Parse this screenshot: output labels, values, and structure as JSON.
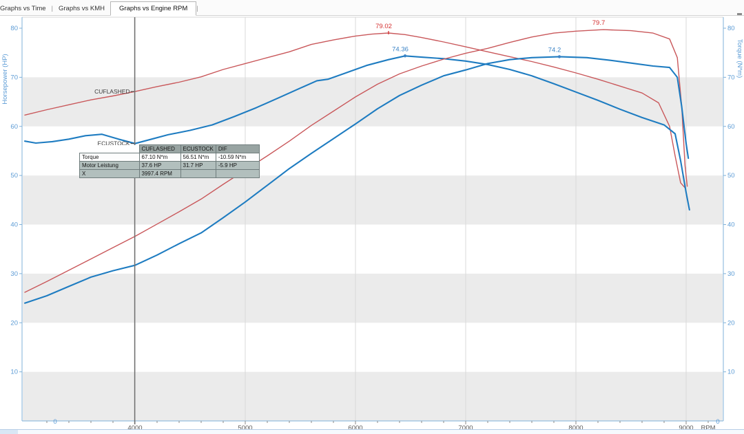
{
  "window": {
    "tabs": [
      {
        "label": "Graphs vs Time"
      },
      {
        "label": "Graphs vs KMH"
      },
      {
        "label": "Graphs vs Engine RPM"
      }
    ],
    "active_tab": "Graphs vs Engine RPM",
    "tab_separator": "|"
  },
  "chart_data": {
    "type": "line",
    "x_axis": {
      "unit_label": "RPM",
      "min": 3000,
      "max": 9300,
      "major_ticks": [
        4000,
        5000,
        6000,
        7000,
        8000,
        9000
      ],
      "minor_tick_step": 200,
      "grid": "vertical-lines-at-major-ticks"
    },
    "y_axis_left": {
      "title": "Horsepower (HP)",
      "min": 0,
      "max": 80,
      "ticks": [
        0,
        10,
        20,
        30,
        40,
        50,
        60,
        70,
        80
      ],
      "corner_zero_label": "0"
    },
    "y_axis_right": {
      "title": "Torque (N*m)",
      "min": 0,
      "max": 80,
      "ticks": [
        0,
        10,
        20,
        30,
        40,
        50,
        60,
        70,
        80
      ],
      "corner_zero_label": "0"
    },
    "bands": {
      "gray_ranges": [
        [
          0,
          10
        ],
        [
          20,
          30
        ],
        [
          40,
          50
        ],
        [
          60,
          70
        ]
      ],
      "gray_color": "#ebebeb",
      "white_color": "#ffffff"
    },
    "colors": {
      "flashed": "#c9575a",
      "stock": "#1e7cc1",
      "axis_text": "#5b9bd5",
      "axis_line": "#7fb0d8",
      "x_tick_text": "#5a5a5a",
      "grid_line": "#d9d9d9",
      "cursor_line": "#6e6e6e",
      "annotation_text": "#3a3a3a",
      "peak_red": "#d42f2f",
      "peak_blue": "#3c84c6"
    },
    "series": [
      {
        "id": "cuflashed_torque",
        "name": "CUFLASHED",
        "quantity": "Torque",
        "unit": "N*m",
        "axis": "right",
        "color": "#c9575a",
        "width": 1.4,
        "points": [
          [
            3000,
            62.3
          ],
          [
            3200,
            63.4
          ],
          [
            3400,
            64.4
          ],
          [
            3600,
            65.4
          ],
          [
            3800,
            66.2
          ],
          [
            4000,
            67.1
          ],
          [
            4200,
            68.1
          ],
          [
            4400,
            69.0
          ],
          [
            4600,
            70.1
          ],
          [
            4800,
            71.6
          ],
          [
            5000,
            72.8
          ],
          [
            5200,
            74.0
          ],
          [
            5400,
            75.2
          ],
          [
            5600,
            76.7
          ],
          [
            5800,
            77.6
          ],
          [
            6000,
            78.4
          ],
          [
            6150,
            78.8
          ],
          [
            6300,
            79.02
          ],
          [
            6450,
            78.7
          ],
          [
            6600,
            78.1
          ],
          [
            6800,
            77.2
          ],
          [
            7000,
            76.2
          ],
          [
            7200,
            75.2
          ],
          [
            7400,
            74.2
          ],
          [
            7600,
            73.2
          ],
          [
            7800,
            72.1
          ],
          [
            8000,
            70.9
          ],
          [
            8200,
            69.6
          ],
          [
            8400,
            68.2
          ],
          [
            8600,
            66.8
          ],
          [
            8750,
            64.8
          ],
          [
            8850,
            60.0
          ],
          [
            8900,
            54.0
          ],
          [
            8950,
            48.5
          ],
          [
            8990,
            47.5
          ]
        ]
      },
      {
        "id": "ecustock_torque",
        "name": "ECUSTOCK",
        "quantity": "Torque",
        "unit": "N*m",
        "axis": "right",
        "color": "#1e7cc1",
        "width": 2.1,
        "points": [
          [
            3000,
            57.0
          ],
          [
            3100,
            56.6
          ],
          [
            3250,
            56.9
          ],
          [
            3400,
            57.4
          ],
          [
            3550,
            58.1
          ],
          [
            3700,
            58.4
          ],
          [
            3850,
            57.4
          ],
          [
            4000,
            56.51
          ],
          [
            4150,
            57.4
          ],
          [
            4300,
            58.3
          ],
          [
            4500,
            59.2
          ],
          [
            4700,
            60.3
          ],
          [
            4900,
            62.0
          ],
          [
            5100,
            63.8
          ],
          [
            5300,
            65.8
          ],
          [
            5500,
            67.8
          ],
          [
            5650,
            69.3
          ],
          [
            5750,
            69.6
          ],
          [
            5900,
            70.8
          ],
          [
            6100,
            72.4
          ],
          [
            6300,
            73.6
          ],
          [
            6450,
            74.36
          ],
          [
            6600,
            74.1
          ],
          [
            6800,
            73.8
          ],
          [
            7000,
            73.3
          ],
          [
            7200,
            72.6
          ],
          [
            7400,
            71.6
          ],
          [
            7600,
            70.3
          ],
          [
            7800,
            68.7
          ],
          [
            8000,
            67.0
          ],
          [
            8200,
            65.3
          ],
          [
            8400,
            63.5
          ],
          [
            8600,
            61.8
          ],
          [
            8800,
            60.3
          ],
          [
            8900,
            58.5
          ],
          [
            8950,
            53.0
          ],
          [
            9000,
            46.5
          ],
          [
            9030,
            43.0
          ]
        ]
      },
      {
        "id": "cuflashed_power",
        "name": "CUFLASHED",
        "quantity": "Motor Leistung",
        "unit": "HP",
        "axis": "left",
        "color": "#c9575a",
        "width": 1.4,
        "points": [
          [
            3000,
            26.2
          ],
          [
            3200,
            28.4
          ],
          [
            3400,
            30.7
          ],
          [
            3600,
            33.0
          ],
          [
            3800,
            35.3
          ],
          [
            4000,
            37.6
          ],
          [
            4200,
            40.1
          ],
          [
            4400,
            42.6
          ],
          [
            4600,
            45.2
          ],
          [
            4800,
            48.2
          ],
          [
            5000,
            51.1
          ],
          [
            5200,
            54.0
          ],
          [
            5400,
            57.0
          ],
          [
            5600,
            60.2
          ],
          [
            5800,
            63.1
          ],
          [
            6000,
            66.0
          ],
          [
            6200,
            68.6
          ],
          [
            6400,
            70.7
          ],
          [
            6600,
            72.3
          ],
          [
            6800,
            73.7
          ],
          [
            7000,
            74.9
          ],
          [
            7200,
            75.9
          ],
          [
            7400,
            77.1
          ],
          [
            7600,
            78.2
          ],
          [
            7800,
            79.0
          ],
          [
            8000,
            79.4
          ],
          [
            8250,
            79.7
          ],
          [
            8500,
            79.5
          ],
          [
            8700,
            79.0
          ],
          [
            8850,
            77.8
          ],
          [
            8920,
            74.0
          ],
          [
            8960,
            64.0
          ],
          [
            8990,
            52.0
          ],
          [
            9010,
            47.8
          ]
        ]
      },
      {
        "id": "ecustock_power",
        "name": "ECUSTOCK",
        "quantity": "Motor Leistung",
        "unit": "HP",
        "axis": "left",
        "color": "#1e7cc1",
        "width": 2.1,
        "points": [
          [
            3000,
            24.0
          ],
          [
            3200,
            25.5
          ],
          [
            3400,
            27.4
          ],
          [
            3600,
            29.3
          ],
          [
            3800,
            30.6
          ],
          [
            4000,
            31.7
          ],
          [
            4200,
            33.8
          ],
          [
            4400,
            36.1
          ],
          [
            4600,
            38.3
          ],
          [
            4800,
            41.4
          ],
          [
            5000,
            44.6
          ],
          [
            5200,
            48.0
          ],
          [
            5400,
            51.4
          ],
          [
            5600,
            54.5
          ],
          [
            5800,
            57.5
          ],
          [
            6000,
            60.5
          ],
          [
            6200,
            63.6
          ],
          [
            6400,
            66.3
          ],
          [
            6600,
            68.4
          ],
          [
            6800,
            70.3
          ],
          [
            7000,
            71.5
          ],
          [
            7200,
            72.8
          ],
          [
            7400,
            73.6
          ],
          [
            7600,
            74.0
          ],
          [
            7850,
            74.2
          ],
          [
            8100,
            74.0
          ],
          [
            8300,
            73.5
          ],
          [
            8500,
            72.9
          ],
          [
            8700,
            72.3
          ],
          [
            8850,
            72.0
          ],
          [
            8920,
            70.0
          ],
          [
            8960,
            64.0
          ],
          [
            9000,
            56.5
          ],
          [
            9020,
            53.5
          ]
        ]
      }
    ],
    "peak_labels": [
      {
        "text": "79.02",
        "series": "cuflashed_torque",
        "rpm": 6300,
        "value": 79.02,
        "color": "#d42f2f",
        "marker": "tick"
      },
      {
        "text": "74.36",
        "series": "ecustock_torque",
        "rpm": 6450,
        "value": 74.36,
        "color": "#3c84c6",
        "marker": "dot"
      },
      {
        "text": "74.2",
        "series": "ecustock_power",
        "rpm": 7850,
        "value": 74.2,
        "color": "#3c84c6",
        "marker": "dot"
      },
      {
        "text": "79.7",
        "series": "cuflashed_power",
        "rpm": 8250,
        "value": 79.7,
        "color": "#d42f2f",
        "marker": "none"
      }
    ],
    "cursor": {
      "rpm": 3997.4,
      "labels": [
        {
          "text": "CUFLASHED",
          "value": 67.1
        },
        {
          "text": "_ECUSTOCK",
          "value": 56.51
        }
      ]
    }
  },
  "tooltip_table": {
    "columns": [
      "",
      "CUFLASHED",
      "ECUSTOCK",
      "DIF"
    ],
    "rows": [
      [
        "Torque",
        "67.10 N*m",
        "56.51 N*m",
        "-10.59 N*m"
      ],
      [
        "Motor Leistung",
        "37.6 HP",
        "31.7 HP",
        "-5.9 HP"
      ],
      [
        "X",
        "3997.4 RPM",
        "",
        ""
      ]
    ]
  }
}
